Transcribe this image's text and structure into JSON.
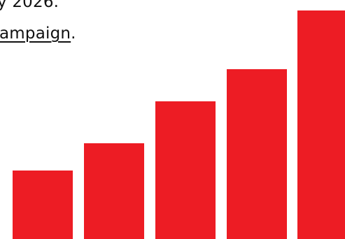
{
  "intro": {
    "line1_text": "y 2026.",
    "line2_link": "ampaign",
    "line2_suffix": "."
  },
  "colors": {
    "bar": "#ED1C24",
    "text": "#111111",
    "background": "#FFFFFF"
  },
  "chart_data": {
    "type": "bar",
    "categories": [
      "",
      "",
      "",
      "",
      ""
    ],
    "values": [
      1.0,
      1.39,
      1.99,
      2.45,
      3.29
    ],
    "title": "",
    "xlabel": "",
    "ylabel": "",
    "ylim": [
      0,
      3.29
    ],
    "grid": false,
    "legend": "none"
  }
}
